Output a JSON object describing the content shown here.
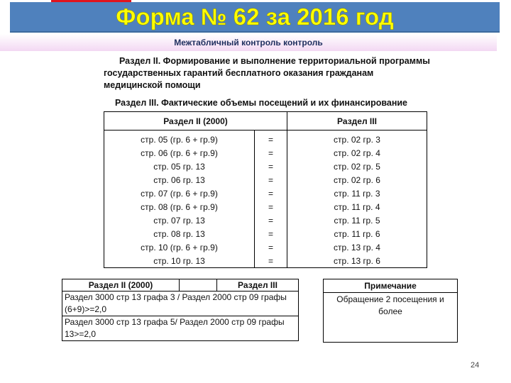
{
  "title": "Форма № 62 за 2016 год",
  "subtitle": "Межтабличный контроль контроль",
  "section2": "Раздел II. Формирование и выполнение территориальной программы государственных гарантий бесплатного оказания гражданам медицинской помощи",
  "section3": "Раздел III. Фактические объемы посещений и их финансирование",
  "table1": {
    "headers": [
      "Раздел II (2000)",
      "",
      "Раздел III"
    ],
    "rows": [
      [
        "стр. 05 (гр. 6 + гр.9)",
        "=",
        "стр. 02 гр. 3"
      ],
      [
        "стр. 06 (гр. 6 + гр.9)",
        "=",
        "стр. 02 гр. 4"
      ],
      [
        "стр. 05 гр. 13",
        "=",
        "стр. 02 гр. 5"
      ],
      [
        "стр. 06 гр. 13",
        "=",
        "стр. 02 гр. 6"
      ],
      [
        "стр. 07 (гр. 6 + гр.9)",
        "=",
        "стр. 11 гр. 3"
      ],
      [
        "стр. 08 (гр. 6 + гр.9)",
        "=",
        "стр. 11 гр. 4"
      ],
      [
        "стр. 07 гр. 13",
        "=",
        "стр. 11 гр. 5"
      ],
      [
        "стр. 08 гр. 13",
        "=",
        "стр. 11 гр. 6"
      ],
      [
        "стр. 10 (гр. 6 + гр.9)",
        "=",
        "стр. 13 гр. 4"
      ],
      [
        "стр. 10 гр. 13",
        "=",
        "стр. 13 гр. 6"
      ]
    ]
  },
  "table2": {
    "headers": [
      "Раздел II (2000)",
      "",
      "Раздел III"
    ],
    "rows": [
      "Раздел 3000 стр 13 графа 3 / Раздел 2000 стр 09 графы (6+9)>=2,0",
      "Раздел 3000 стр 13 графа 5/ Раздел 2000 стр 09 графы 13>=2,0"
    ]
  },
  "note": {
    "header": "Примечание",
    "text": "Обращение 2 посещения и более"
  },
  "page_number": "24"
}
